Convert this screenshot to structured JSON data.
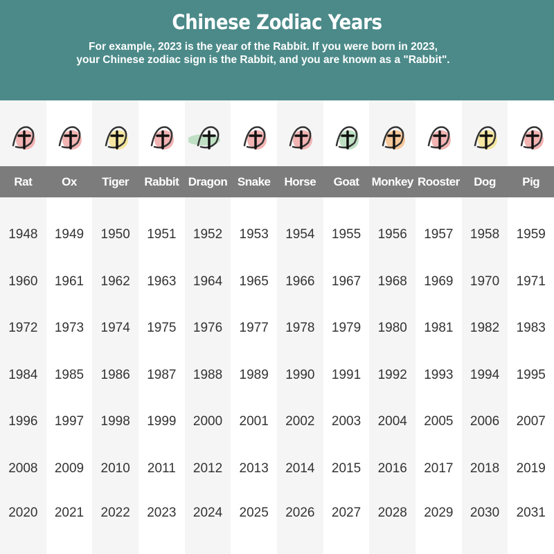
{
  "header": {
    "title": "Chinese Zodiac Years",
    "subtitle": "For example, 2023 is the year of the Rabbit. If you were born in 2023, your Chinese zodiac sign is the Rabbit, and you are known as a \"Rabbit\"."
  },
  "animals": [
    {
      "name": "Rat",
      "icon": "rat-icon",
      "accent": "#f2b3b3",
      "years": [
        "1948",
        "1960",
        "1972",
        "1984",
        "1996",
        "2008",
        "2020"
      ]
    },
    {
      "name": "Ox",
      "icon": "ox-icon",
      "accent": "#f2b3b3",
      "years": [
        "1949",
        "1961",
        "1973",
        "1985",
        "1997",
        "2009",
        "2021"
      ]
    },
    {
      "name": "Tiger",
      "icon": "tiger-icon",
      "accent": "#f5e6a0",
      "years": [
        "1950",
        "1962",
        "1974",
        "1986",
        "1998",
        "2010",
        "2022"
      ]
    },
    {
      "name": "Rabbit",
      "icon": "rabbit-icon",
      "accent": "#f2b3b3",
      "years": [
        "1951",
        "1963",
        "1975",
        "1987",
        "1999",
        "2011",
        "2023"
      ]
    },
    {
      "name": "Dragon",
      "icon": "dragon-icon",
      "accent": "#bfe0c4",
      "years": [
        "1952",
        "1964",
        "1976",
        "1988",
        "2000",
        "2012",
        "2024"
      ]
    },
    {
      "name": "Snake",
      "icon": "snake-icon",
      "accent": "#f2b3b3",
      "years": [
        "1953",
        "1965",
        "1977",
        "1989",
        "2001",
        "2013",
        "2025"
      ]
    },
    {
      "name": "Horse",
      "icon": "horse-icon",
      "accent": "#f2b3b3",
      "years": [
        "1954",
        "1966",
        "1978",
        "1990",
        "2002",
        "2014",
        "2026"
      ]
    },
    {
      "name": "Goat",
      "icon": "goat-icon",
      "accent": "#bfe0c4",
      "years": [
        "1955",
        "1967",
        "1979",
        "1991",
        "2003",
        "2015",
        "2027"
      ]
    },
    {
      "name": "Monkey",
      "icon": "monkey-icon",
      "accent": "#f7c89a",
      "years": [
        "1956",
        "1968",
        "1980",
        "1992",
        "2004",
        "2016",
        "2028"
      ]
    },
    {
      "name": "Rooster",
      "icon": "rooster-icon",
      "accent": "#f2b3b3",
      "years": [
        "1957",
        "1969",
        "1981",
        "1993",
        "2005",
        "2017",
        "2029"
      ]
    },
    {
      "name": "Dog",
      "icon": "dog-icon",
      "accent": "#f5e6a0",
      "years": [
        "1958",
        "1970",
        "1982",
        "1994",
        "2006",
        "2018",
        "2030"
      ]
    },
    {
      "name": "Pig",
      "icon": "pig-icon",
      "accent": "#f2b3b3",
      "years": [
        "1959",
        "1971",
        "1983",
        "1995",
        "2007",
        "2019",
        "2031"
      ]
    }
  ]
}
